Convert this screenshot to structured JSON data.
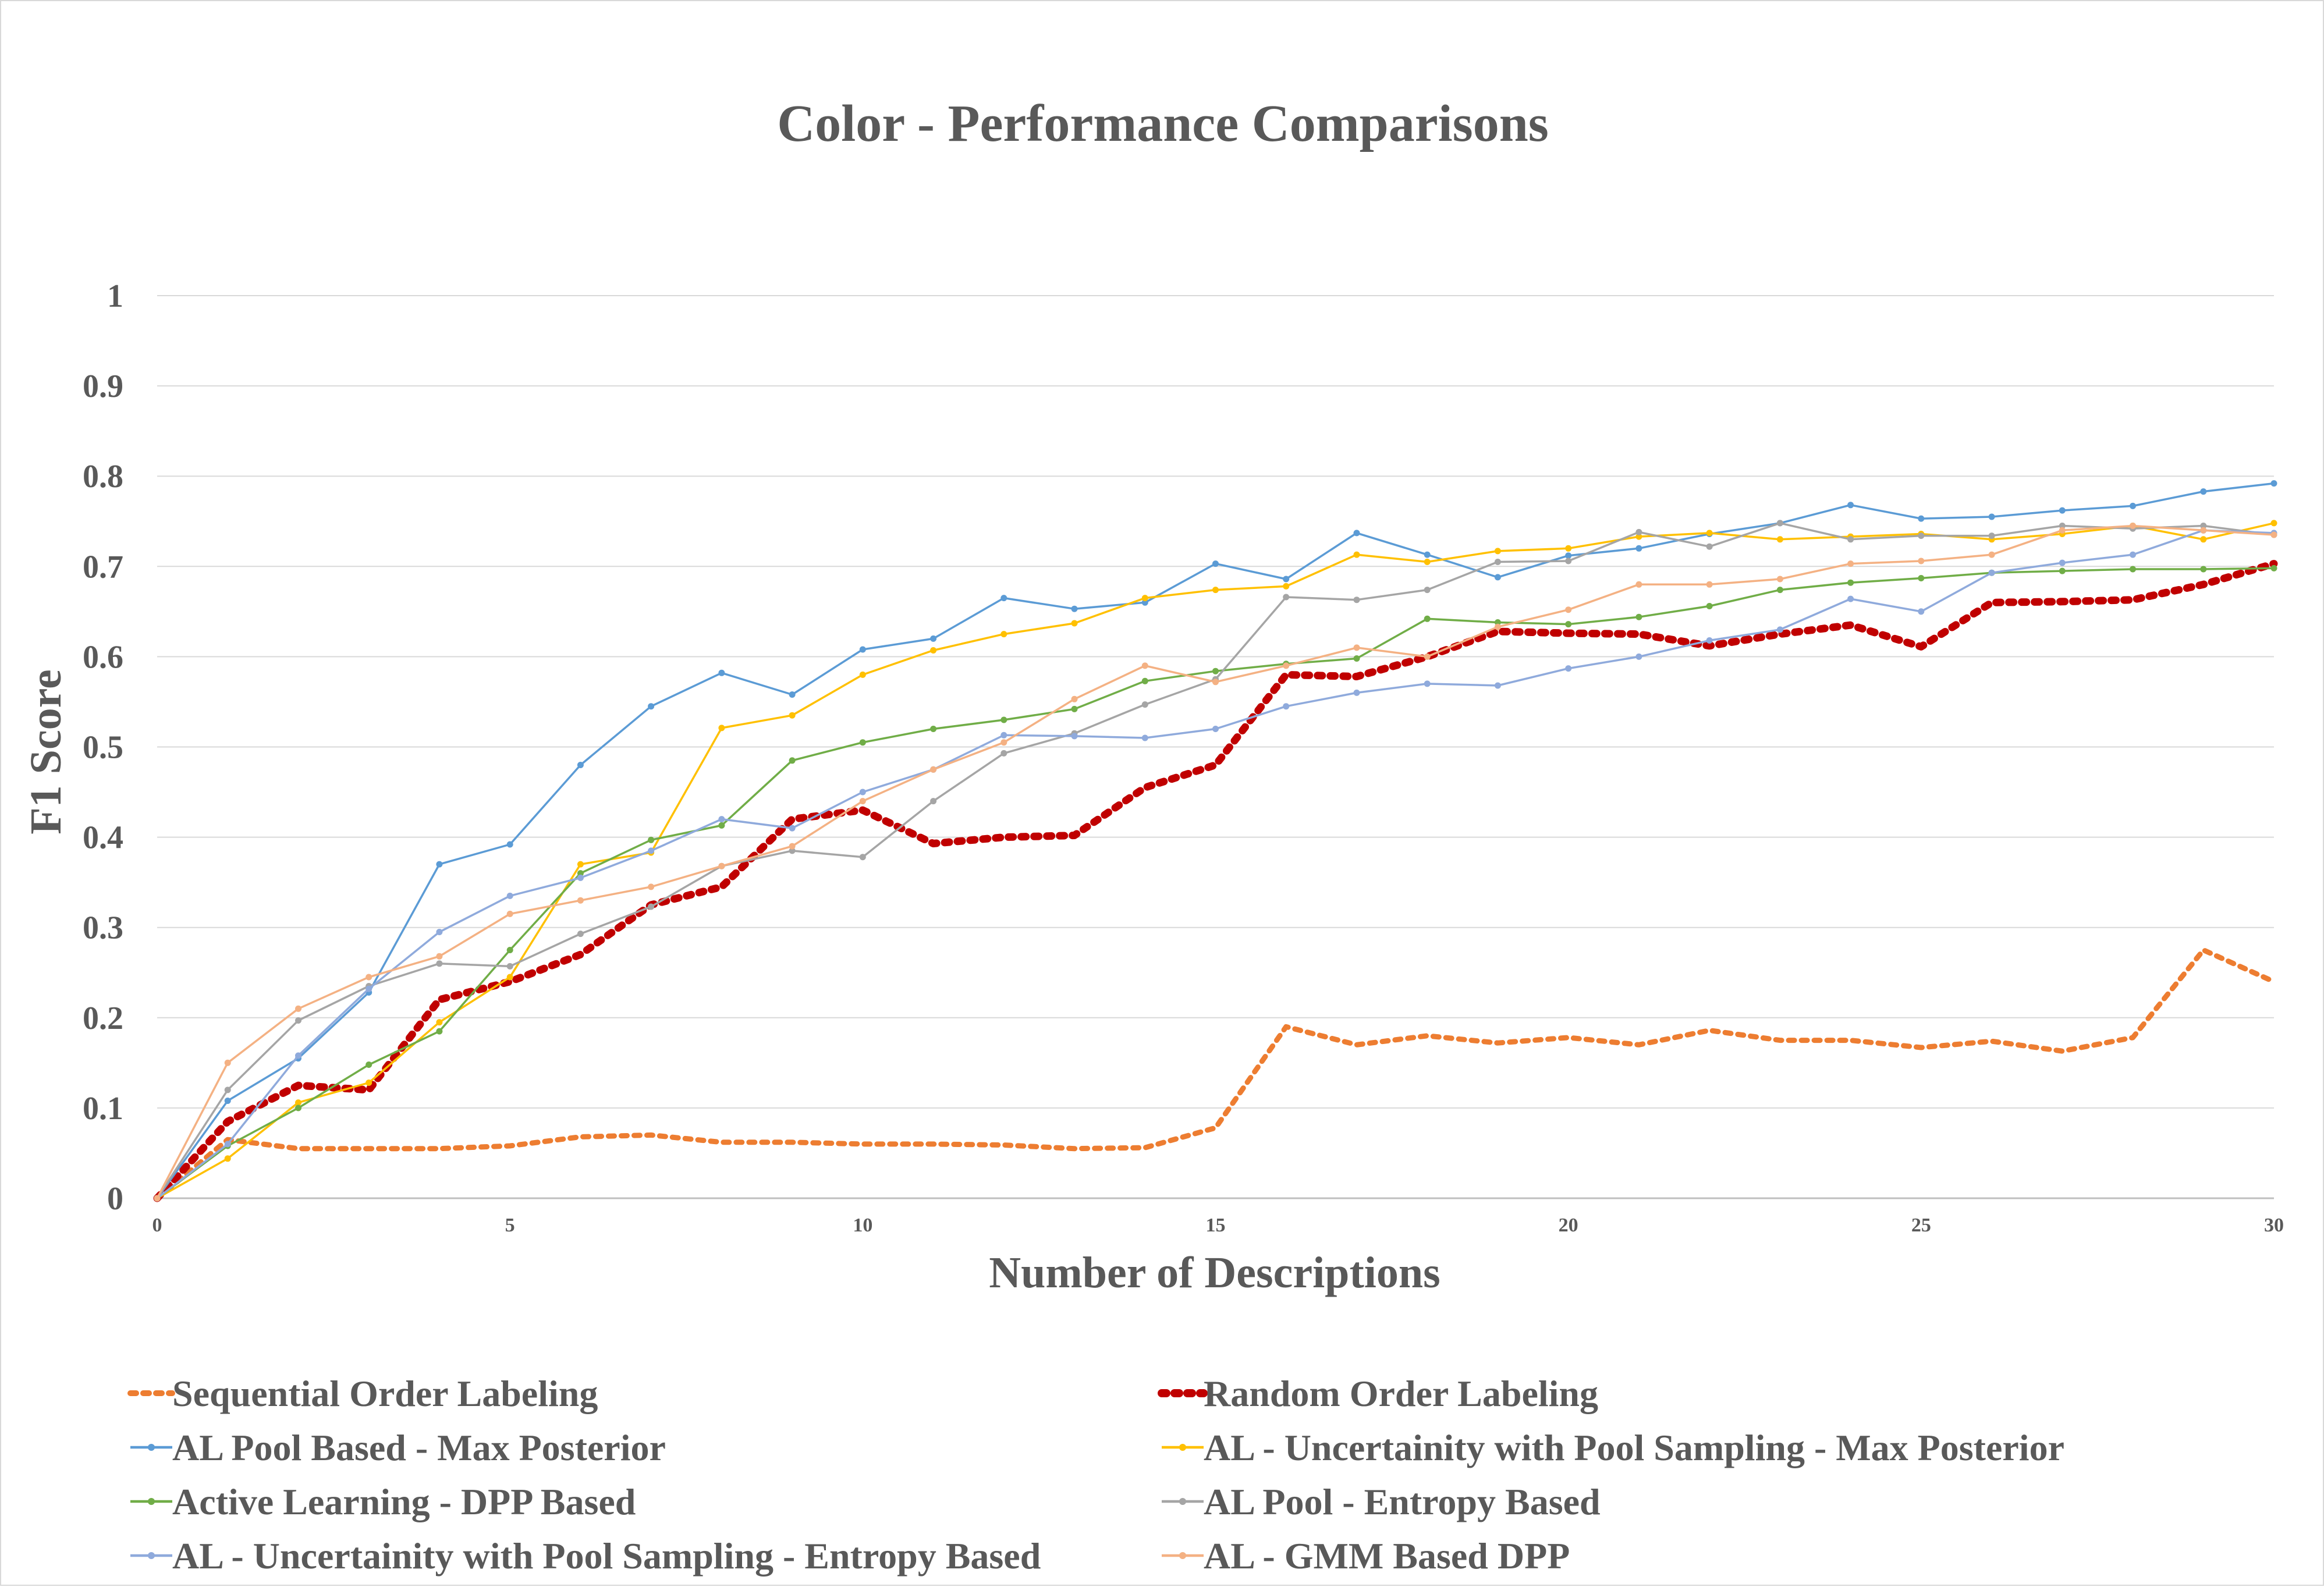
{
  "chart_data": {
    "type": "line",
    "title": "Color - Performance Comparisons",
    "xlabel": "Number of Descriptions",
    "ylabel": "F1 Score",
    "xlim": [
      0,
      30
    ],
    "ylim": [
      0,
      1
    ],
    "x_ticks": [
      "0",
      "5",
      "10",
      "15",
      "20",
      "25",
      "30"
    ],
    "y_ticks": [
      "0",
      "0.1",
      "0.2",
      "0.3",
      "0.4",
      "0.5",
      "0.6",
      "0.7",
      "0.8",
      "0.9",
      "1"
    ],
    "grid": true,
    "legend_position": "bottom",
    "x": [
      0,
      1,
      2,
      3,
      4,
      5,
      6,
      7,
      8,
      9,
      10,
      11,
      12,
      13,
      14,
      15,
      16,
      17,
      18,
      19,
      20,
      21,
      22,
      23,
      24,
      25,
      26,
      27,
      28,
      29,
      30
    ],
    "series": [
      {
        "name": "Sequential Order Labeling",
        "color": "#ed7d31",
        "style": "dotted",
        "values": [
          0.0,
          0.065,
          0.055,
          0.055,
          0.055,
          0.058,
          0.068,
          0.07,
          0.062,
          0.062,
          0.06,
          0.06,
          0.059,
          0.055,
          0.056,
          0.078,
          0.19,
          0.17,
          0.18,
          0.172,
          0.178,
          0.17,
          0.186,
          0.175,
          0.175,
          0.167,
          0.174,
          0.163,
          0.178,
          0.275,
          0.24
        ]
      },
      {
        "name": "Random Order Labeling",
        "color": "#c00000",
        "style": "dotted-thick",
        "values": [
          0.0,
          0.085,
          0.125,
          0.12,
          0.22,
          0.24,
          0.27,
          0.325,
          0.345,
          0.42,
          0.43,
          0.393,
          0.4,
          0.402,
          0.455,
          0.48,
          0.58,
          0.578,
          0.6,
          0.628,
          0.626,
          0.625,
          0.612,
          0.625,
          0.635,
          0.611,
          0.66,
          0.661,
          0.663,
          0.68,
          0.703
        ]
      },
      {
        "name": "AL Pool Based - Max Posterior",
        "color": "#5b9bd5",
        "style": "solid",
        "values": [
          0.0,
          0.108,
          0.155,
          0.228,
          0.37,
          0.392,
          0.48,
          0.545,
          0.582,
          0.558,
          0.608,
          0.62,
          0.665,
          0.653,
          0.66,
          0.703,
          0.686,
          0.737,
          0.713,
          0.688,
          0.712,
          0.72,
          0.736,
          0.748,
          0.768,
          0.753,
          0.755,
          0.762,
          0.767,
          0.783,
          0.792
        ]
      },
      {
        "name": "AL - Uncertainity with Pool Sampling - Max Posterior",
        "color": "#ffc000",
        "style": "solid",
        "values": [
          0.0,
          0.044,
          0.106,
          0.128,
          0.195,
          0.245,
          0.37,
          0.383,
          0.521,
          0.535,
          0.58,
          0.607,
          0.625,
          0.637,
          0.665,
          0.674,
          0.678,
          0.713,
          0.705,
          0.717,
          0.72,
          0.733,
          0.737,
          0.73,
          0.733,
          0.736,
          0.73,
          0.736,
          0.745,
          0.73,
          0.748
        ]
      },
      {
        "name": "Active Learning - DPP Based",
        "color": "#70ad47",
        "style": "solid",
        "values": [
          0.0,
          0.058,
          0.1,
          0.148,
          0.185,
          0.275,
          0.36,
          0.397,
          0.413,
          0.485,
          0.505,
          0.52,
          0.53,
          0.542,
          0.573,
          0.584,
          0.592,
          0.598,
          0.642,
          0.638,
          0.636,
          0.644,
          0.656,
          0.674,
          0.682,
          0.687,
          0.693,
          0.695,
          0.697,
          0.697,
          0.698
        ]
      },
      {
        "name": "AL Pool - Entropy Based",
        "color": "#a5a5a5",
        "style": "solid",
        "values": [
          0.0,
          0.12,
          0.197,
          0.235,
          0.26,
          0.257,
          0.293,
          0.323,
          0.368,
          0.385,
          0.378,
          0.44,
          0.493,
          0.515,
          0.547,
          0.575,
          0.666,
          0.663,
          0.674,
          0.705,
          0.706,
          0.738,
          0.722,
          0.748,
          0.73,
          0.734,
          0.734,
          0.745,
          0.742,
          0.745,
          0.735
        ]
      },
      {
        "name": "AL - Uncertainity with Pool Sampling - Entropy Based",
        "color": "#8faadc",
        "style": "solid",
        "values": [
          0.0,
          0.06,
          0.158,
          0.232,
          0.295,
          0.335,
          0.355,
          0.385,
          0.42,
          0.41,
          0.45,
          0.475,
          0.513,
          0.512,
          0.51,
          0.52,
          0.545,
          0.56,
          0.57,
          0.568,
          0.587,
          0.6,
          0.618,
          0.63,
          0.664,
          0.65,
          0.693,
          0.704,
          0.713,
          0.74,
          0.737
        ]
      },
      {
        "name": "AL - GMM Based DPP",
        "color": "#f4b183",
        "style": "solid",
        "values": [
          0.0,
          0.15,
          0.21,
          0.245,
          0.268,
          0.315,
          0.33,
          0.345,
          0.368,
          0.39,
          0.44,
          0.475,
          0.505,
          0.553,
          0.59,
          0.572,
          0.59,
          0.61,
          0.6,
          0.633,
          0.652,
          0.68,
          0.68,
          0.686,
          0.703,
          0.706,
          0.713,
          0.74,
          0.745,
          0.74,
          0.735
        ]
      }
    ]
  }
}
